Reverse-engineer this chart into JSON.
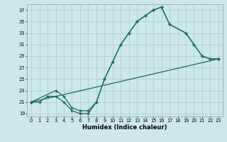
{
  "xlabel": "Humidex (Indice chaleur)",
  "bg_color": "#cce8e8",
  "grid_color": "#aacccc",
  "line_color": "#1a6b5a",
  "xlim": [
    -0.5,
    23.5
  ],
  "ylim": [
    18.5,
    38
  ],
  "yticks": [
    19,
    21,
    23,
    25,
    27,
    29,
    31,
    33,
    35,
    37
  ],
  "xticks": [
    0,
    1,
    2,
    3,
    4,
    5,
    6,
    7,
    8,
    9,
    10,
    11,
    12,
    13,
    14,
    15,
    16,
    17,
    18,
    19,
    20,
    21,
    22,
    23
  ],
  "line1_x": [
    0,
    1,
    2,
    3,
    4,
    5,
    6,
    7,
    8,
    9,
    10,
    11,
    12,
    13,
    14,
    15,
    16,
    17,
    19,
    20,
    21,
    22,
    23
  ],
  "line1_y": [
    21,
    21,
    22,
    22,
    21,
    19.5,
    19,
    19,
    21,
    25,
    28,
    31,
    33,
    35,
    36,
    37,
    37.5,
    34.5,
    33,
    31,
    29,
    28.5,
    28.5
  ],
  "line2_x": [
    0,
    23
  ],
  "line2_y": [
    21,
    28.5
  ],
  "line3_x": [
    0,
    3,
    4,
    5,
    6,
    7,
    8,
    9,
    10,
    11,
    12,
    13,
    14,
    15,
    16,
    17,
    19,
    20,
    21,
    22,
    23
  ],
  "line3_y": [
    21,
    23,
    22,
    20,
    19.5,
    19.5,
    21,
    25,
    28,
    31,
    33,
    35,
    36,
    37,
    37.5,
    34.5,
    33,
    31,
    29,
    28.5,
    28.5
  ]
}
